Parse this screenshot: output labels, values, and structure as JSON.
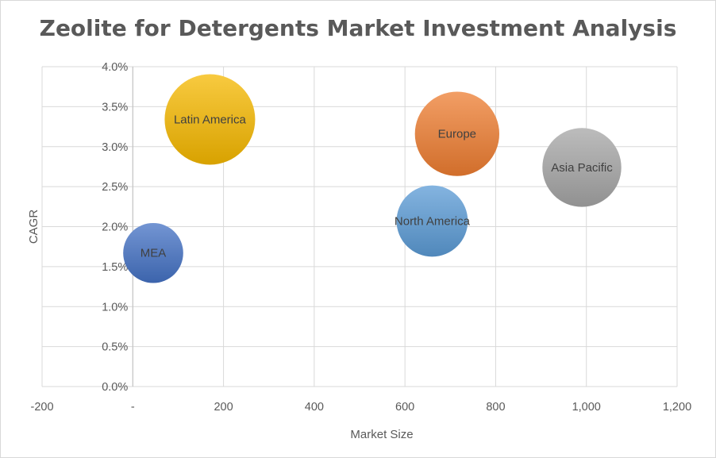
{
  "chart_data": {
    "type": "bubble",
    "title": "Zeolite for Detergents Market Investment Analysis",
    "xlabel": "Market Size",
    "ylabel": "CAGR",
    "xlim": [
      -200,
      1200
    ],
    "ylim": [
      0,
      0.04
    ],
    "x_ticks": [
      "-200",
      "-",
      "200",
      "400",
      "600",
      "800",
      "1,000",
      "1,200"
    ],
    "y_ticks": [
      "0.0%",
      "0.5%",
      "1.0%",
      "1.5%",
      "2.0%",
      "2.5%",
      "3.0%",
      "3.5%",
      "4.0%"
    ],
    "grid": true,
    "legend": "none",
    "points": [
      {
        "label": "Latin America",
        "x": 170,
        "y": 0.0334,
        "size": 1.0,
        "color": "#f5b800"
      },
      {
        "label": "Europe",
        "x": 715,
        "y": 0.0316,
        "size": 0.87,
        "color": "#ed7d31"
      },
      {
        "label": "Asia Pacific",
        "x": 990,
        "y": 0.0274,
        "size": 0.76,
        "color": "#a5a5a5"
      },
      {
        "label": "North America",
        "x": 660,
        "y": 0.0207,
        "size": 0.62,
        "color": "#5b9bd5"
      },
      {
        "label": "MEA",
        "x": 45,
        "y": 0.0167,
        "size": 0.44,
        "color": "#4472c4"
      }
    ]
  }
}
